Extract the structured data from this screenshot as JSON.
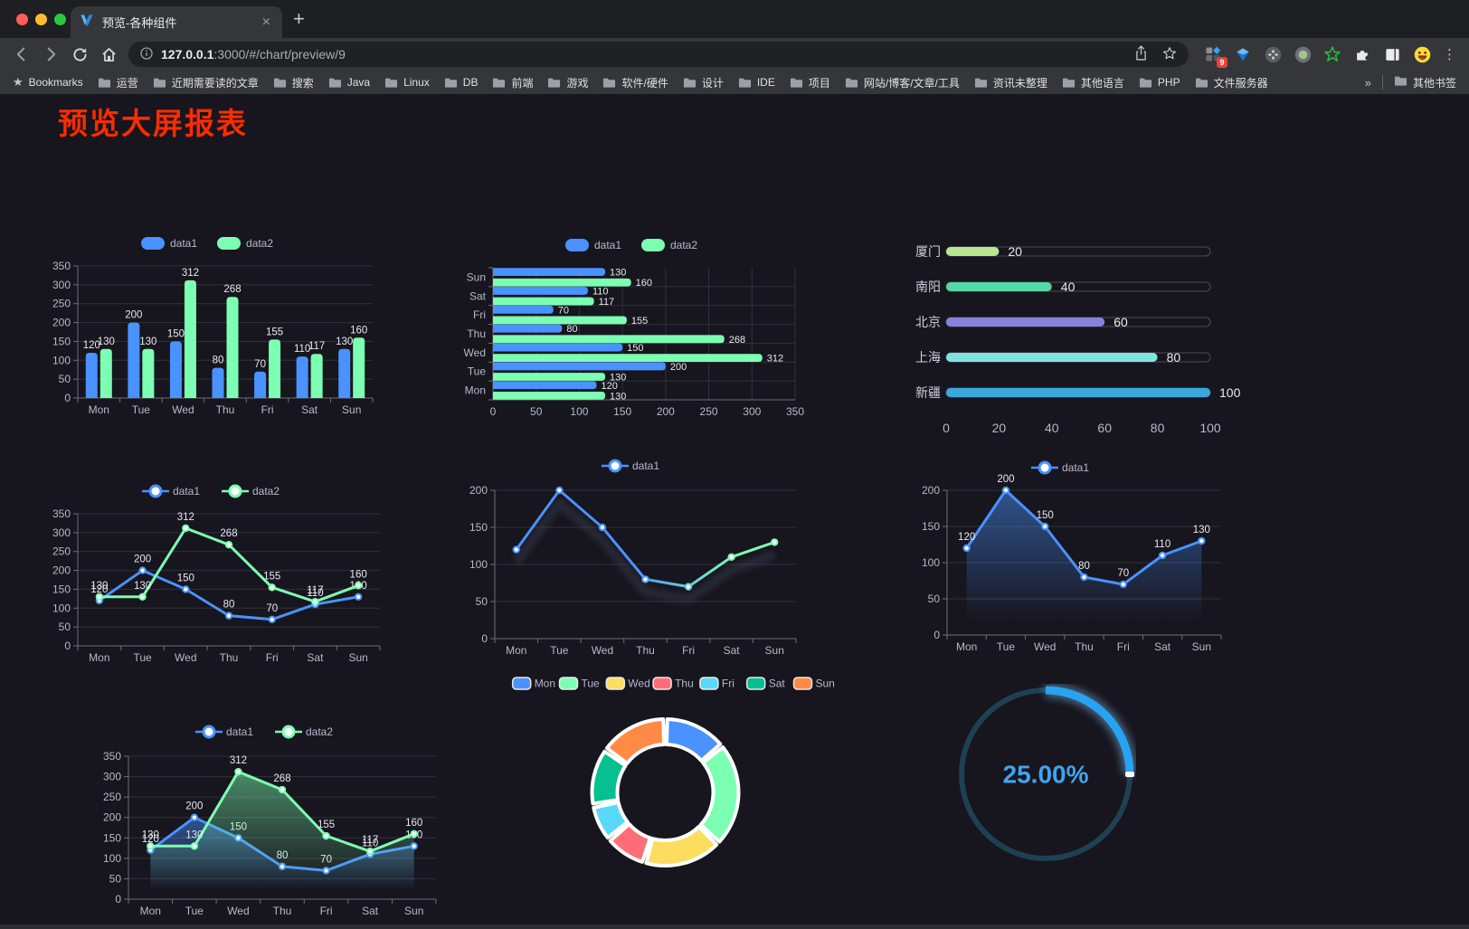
{
  "browser": {
    "tab": {
      "title": "预览-各种组件",
      "close_icon": "×",
      "new_tab_icon": "+"
    },
    "address": {
      "host": "127.0.0.1",
      "rest": ":3000/#/chart/preview/9"
    },
    "extensions_badge": "9",
    "menu_icon": "⋮",
    "bookmarks_bar": {
      "star_icon": "★",
      "label": "Bookmarks",
      "folders": [
        "运营",
        "近期需要读的文章",
        "搜索",
        "Java",
        "Linux",
        "DB",
        "前端",
        "游戏",
        "软件/硬件",
        "设计",
        "IDE",
        "项目",
        "网站/博客/文章/工具",
        "资讯未整理",
        "其他语言",
        "PHP",
        "文件服务器"
      ],
      "overflow_icon": "»",
      "other_bookmarks": "其他书签"
    }
  },
  "page": {
    "title": "预览大屏报表",
    "colors": {
      "background": "#17151d",
      "title": "#f92c02",
      "axis_label": "#b9b8ce",
      "grid_line": "#32313d",
      "axis_line": "#6e7079",
      "value_label": "#e9e9f0",
      "series_data1": "#4992ff",
      "series_data2": "#7cffb2"
    }
  },
  "chart_data": [
    {
      "id": "c1",
      "type": "bar",
      "legend": [
        "data1",
        "data2"
      ],
      "categories": [
        "Mon",
        "Tue",
        "Wed",
        "Thu",
        "Fri",
        "Sat",
        "Sun"
      ],
      "series": [
        {
          "name": "data1",
          "color": "#4992ff",
          "values": [
            120,
            200,
            150,
            80,
            70,
            110,
            130
          ]
        },
        {
          "name": "data2",
          "color": "#7cffb2",
          "values": [
            130,
            130,
            312,
            268,
            155,
            117,
            160
          ]
        }
      ],
      "ylim": [
        0,
        350
      ],
      "ystep": 50,
      "labels": true
    },
    {
      "id": "c2",
      "type": "bar-horizontal",
      "legend": [
        "data1",
        "data2"
      ],
      "categories": [
        "Mon",
        "Tue",
        "Wed",
        "Thu",
        "Fri",
        "Sat",
        "Sun"
      ],
      "series": [
        {
          "name": "data1",
          "color": "#4992ff",
          "values": [
            120,
            200,
            150,
            80,
            70,
            110,
            130
          ]
        },
        {
          "name": "data2",
          "color": "#7cffb2",
          "values": [
            130,
            130,
            312,
            268,
            155,
            117,
            160
          ]
        }
      ],
      "xlim": [
        0,
        350
      ],
      "xstep": 50,
      "labels": true
    },
    {
      "id": "c3",
      "type": "progress-bars",
      "rows": [
        {
          "label": "厦门",
          "value": 20,
          "color": "#b8e78f"
        },
        {
          "label": "南阳",
          "value": 40,
          "color": "#55d8a4"
        },
        {
          "label": "北京",
          "value": 60,
          "color": "#8583dc"
        },
        {
          "label": "上海",
          "value": 80,
          "color": "#80e3e0"
        },
        {
          "label": "新疆",
          "value": 100,
          "color": "#3aa7dd"
        }
      ],
      "xlim": [
        0,
        100
      ],
      "xticks": [
        0,
        20,
        40,
        60,
        80,
        100
      ]
    },
    {
      "id": "c4",
      "type": "line",
      "legend": [
        "data1",
        "data2"
      ],
      "categories": [
        "Mon",
        "Tue",
        "Wed",
        "Thu",
        "Fri",
        "Sat",
        "Sun"
      ],
      "series": [
        {
          "name": "data1",
          "color": "#4992ff",
          "values": [
            120,
            200,
            150,
            80,
            70,
            110,
            130
          ]
        },
        {
          "name": "data2",
          "color": "#7cffb2",
          "values": [
            130,
            130,
            312,
            268,
            155,
            117,
            160
          ]
        }
      ],
      "ylim": [
        0,
        350
      ],
      "ystep": 50,
      "labels": true
    },
    {
      "id": "c5",
      "type": "line",
      "legend": [
        "data1"
      ],
      "categories": [
        "Mon",
        "Tue",
        "Wed",
        "Thu",
        "Fri",
        "Sat",
        "Sun"
      ],
      "series": [
        {
          "name": "data1",
          "gradient": [
            "#4992ff",
            "#7cffb2"
          ],
          "values": [
            120,
            200,
            150,
            80,
            70,
            110,
            130
          ]
        }
      ],
      "ylim": [
        0,
        200
      ],
      "ystep": 50,
      "labels": false,
      "shadow": true
    },
    {
      "id": "c6",
      "type": "line",
      "legend": [
        "data1"
      ],
      "categories": [
        "Mon",
        "Tue",
        "Wed",
        "Thu",
        "Fri",
        "Sat",
        "Sun"
      ],
      "series": [
        {
          "name": "data1",
          "color": "#4992ff",
          "area": true,
          "values": [
            120,
            200,
            150,
            80,
            70,
            110,
            130
          ]
        }
      ],
      "ylim": [
        0,
        200
      ],
      "ystep": 50,
      "labels": true
    },
    {
      "id": "c7",
      "type": "line",
      "legend": [
        "data1",
        "data2"
      ],
      "categories": [
        "Mon",
        "Tue",
        "Wed",
        "Thu",
        "Fri",
        "Sat",
        "Sun"
      ],
      "series": [
        {
          "name": "data1",
          "color": "#4992ff",
          "area": true,
          "values": [
            120,
            200,
            150,
            80,
            70,
            110,
            130
          ]
        },
        {
          "name": "data2",
          "color": "#7cffb2",
          "area": true,
          "values": [
            130,
            130,
            312,
            268,
            155,
            117,
            160
          ]
        }
      ],
      "ylim": [
        0,
        350
      ],
      "ystep": 50,
      "labels": true
    },
    {
      "id": "c8",
      "type": "pie",
      "legend": [
        "Mon",
        "Tue",
        "Wed",
        "Thu",
        "Fri",
        "Sat",
        "Sun"
      ],
      "slices": [
        {
          "label": "Mon",
          "value": 120,
          "color": "#4992ff"
        },
        {
          "label": "Tue",
          "value": 200,
          "color": "#7cffb2"
        },
        {
          "label": "Wed",
          "value": 150,
          "color": "#fddd60"
        },
        {
          "label": "Thu",
          "value": 80,
          "color": "#ff6e76"
        },
        {
          "label": "Fri",
          "value": 70,
          "color": "#58d9f9"
        },
        {
          "label": "Sat",
          "value": 110,
          "color": "#05c091"
        },
        {
          "label": "Sun",
          "value": 130,
          "color": "#ff8a45"
        }
      ],
      "border_color": "#ffffff"
    },
    {
      "id": "c9",
      "type": "gauge",
      "value_text": "25.00%",
      "percent": 25,
      "arc_color": "#27a3f2",
      "track_color": "#1d4152",
      "text_color": "#3fa5f0"
    }
  ]
}
